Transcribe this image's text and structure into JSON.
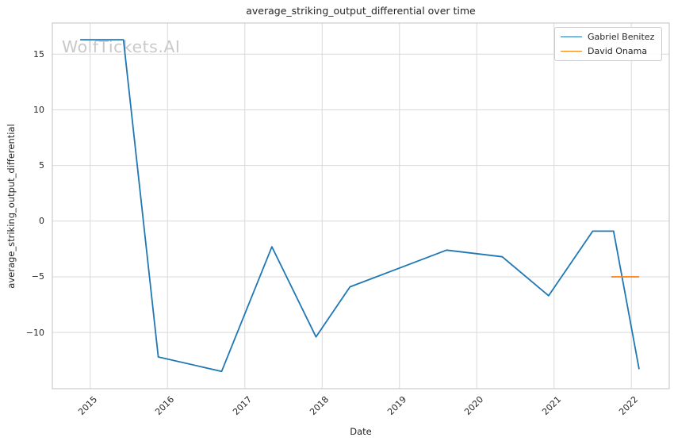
{
  "watermark": {
    "text": "WolfTickets.AI"
  },
  "chart_data": {
    "type": "line",
    "title": "average_striking_output_differential over time",
    "xlabel": "Date",
    "ylabel": "average_striking_output_differential",
    "xlim": [
      2014.51,
      2022.49
    ],
    "ylim": [
      -15.05,
      17.8
    ],
    "grid": true,
    "legend_position": "upper right",
    "xticks": [
      {
        "value": 2015,
        "label": "2015"
      },
      {
        "value": 2016,
        "label": "2016"
      },
      {
        "value": 2017,
        "label": "2017"
      },
      {
        "value": 2018,
        "label": "2018"
      },
      {
        "value": 2019,
        "label": "2019"
      },
      {
        "value": 2020,
        "label": "2020"
      },
      {
        "value": 2021,
        "label": "2021"
      },
      {
        "value": 2022,
        "label": "2022"
      }
    ],
    "yticks": [
      {
        "value": 15,
        "label": "15"
      },
      {
        "value": 10,
        "label": "10"
      },
      {
        "value": 5,
        "label": "5"
      },
      {
        "value": 0,
        "label": "0"
      },
      {
        "value": -5,
        "label": "−5"
      },
      {
        "value": -10,
        "label": "−10"
      }
    ],
    "series": [
      {
        "name": "Gabriel Benitez",
        "color": "#1f77b4",
        "points": [
          [
            2014.87,
            16.3
          ],
          [
            2015.43,
            16.3
          ],
          [
            2015.88,
            -12.2
          ],
          [
            2016.7,
            -13.5
          ],
          [
            2017.35,
            -2.3
          ],
          [
            2017.92,
            -10.4
          ],
          [
            2018.36,
            -5.9
          ],
          [
            2019.61,
            -2.6
          ],
          [
            2020.33,
            -3.2
          ],
          [
            2020.93,
            -6.7
          ],
          [
            2021.5,
            -0.9
          ],
          [
            2021.77,
            -0.9
          ],
          [
            2022.1,
            -13.3
          ]
        ]
      },
      {
        "name": "David Onama",
        "color": "#ff7f0e",
        "points": [
          [
            2021.74,
            -5.0
          ],
          [
            2022.1,
            -5.0
          ]
        ]
      }
    ]
  },
  "style": {
    "grid_color": "#d9d9d9",
    "spine_color": "#cccccc",
    "text_color": "#262626",
    "watermark_color": "#c9c9c9",
    "background": "#ffffff"
  }
}
